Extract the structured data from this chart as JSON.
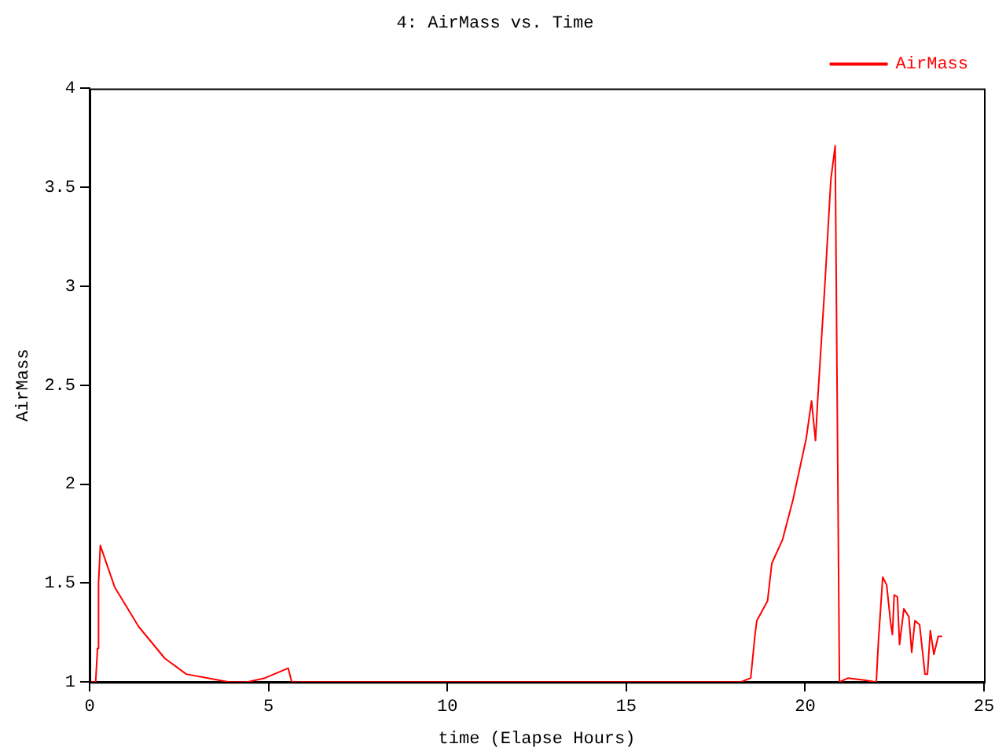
{
  "chart_data": {
    "type": "line",
    "title": "4: AirMass vs. Time",
    "xlabel": "time (Elapse Hours)",
    "ylabel": "AirMass",
    "xlim": [
      0,
      25
    ],
    "xticks": [
      0,
      5,
      10,
      15,
      20,
      25
    ],
    "ylim": [
      1,
      4
    ],
    "yticks": [
      1,
      1.5,
      2,
      2.5,
      3,
      3.5,
      4
    ],
    "grid": false,
    "legend": "top right",
    "marker": "none",
    "line_style": "solid",
    "series": [
      {
        "name": "AirMass",
        "color": "#ff0000",
        "x": [
          0,
          0.17,
          0.22,
          0.25,
          0.3,
          0.7,
          1.37,
          2.1,
          2.7,
          3.6,
          3.9,
          4.4,
          4.9,
          5.55,
          5.65,
          18.2,
          18.48,
          18.6,
          18.65,
          18.95,
          19.07,
          19.37,
          19.66,
          20.03,
          20.18,
          20.29,
          20.35,
          20.55,
          20.72,
          20.84,
          20.87,
          20.93,
          20.96,
          21.2,
          21.65,
          21.99,
          22.05,
          22.17,
          22.28,
          22.39,
          22.44,
          22.49,
          22.58,
          22.64,
          22.76,
          22.9,
          22.98,
          23.07,
          23.2,
          23.35,
          23.42,
          23.5,
          23.6,
          23.72,
          23.83
        ],
        "values": [
          1,
          1,
          1.17,
          1.5,
          1.69,
          1.48,
          1.28,
          1.12,
          1.04,
          1.01,
          1,
          1,
          1.02,
          1.07,
          1,
          1,
          1.02,
          1.24,
          1.31,
          1.41,
          1.6,
          1.72,
          1.92,
          2.23,
          2.42,
          2.22,
          2.42,
          3.0,
          3.54,
          3.71,
          3.04,
          1.68,
          1,
          1.02,
          1.01,
          1,
          1.21,
          1.53,
          1.49,
          1.3,
          1.24,
          1.44,
          1.43,
          1.19,
          1.37,
          1.33,
          1.15,
          1.31,
          1.29,
          1.04,
          1.04,
          1.26,
          1.14,
          1.23,
          1.23
        ]
      }
    ]
  }
}
